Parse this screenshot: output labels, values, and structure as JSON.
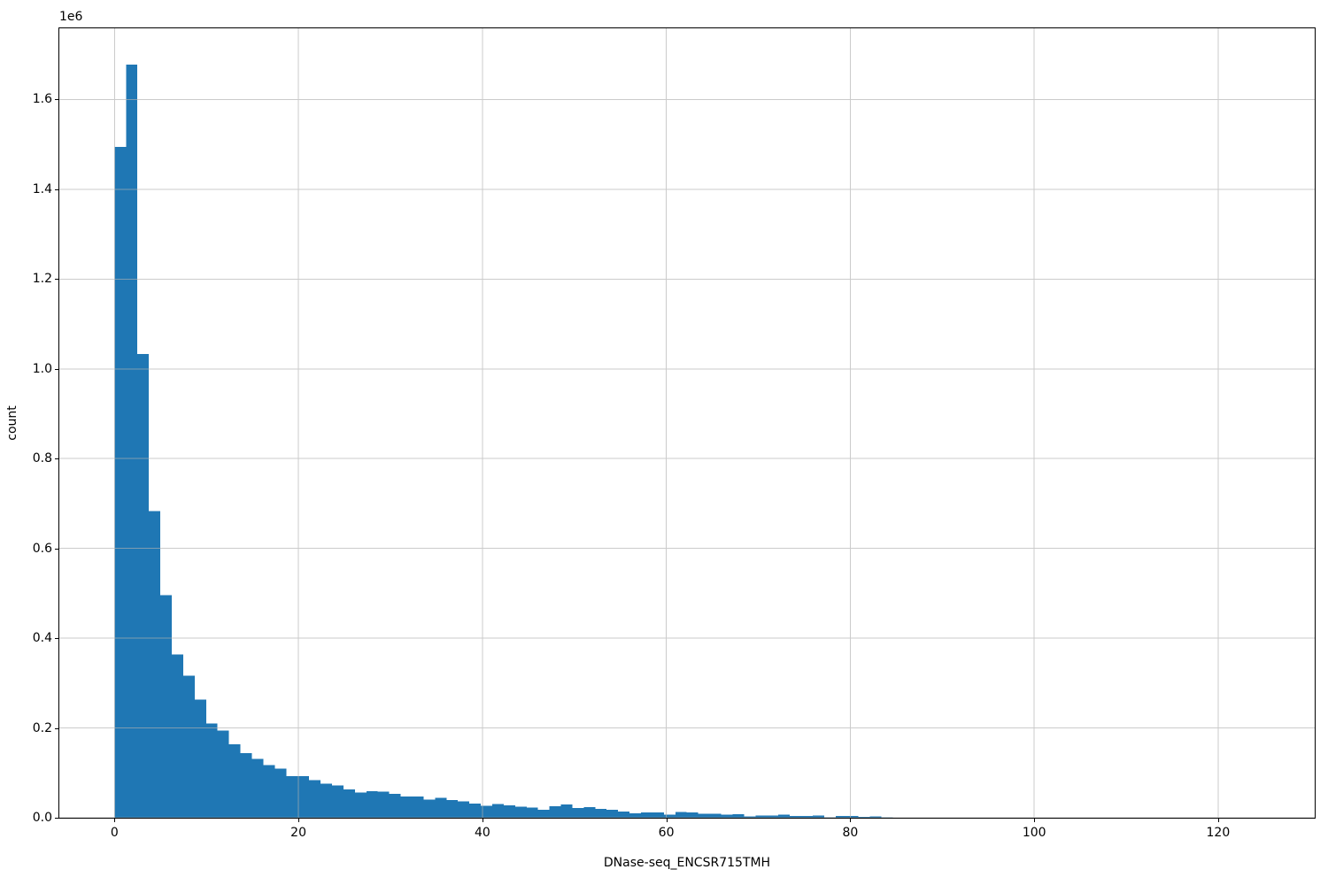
{
  "figure": {
    "background": "#ffffff"
  },
  "chart_data": {
    "type": "histogram",
    "title": "",
    "xlabel": "DNase-seq_ENCSR715TMH",
    "ylabel": "count",
    "y_offset_label": "1e6",
    "bar_color": "#1f77b4",
    "grid_color": "#b0b0b0",
    "spine_color": "#000000",
    "grid": true,
    "legend_position": "none",
    "xlim": [
      -6.0,
      130.5
    ],
    "ylim": [
      0,
      1758500
    ],
    "x_ticks": [
      0,
      20,
      40,
      60,
      80,
      100,
      120
    ],
    "x_tick_labels": [
      "0",
      "20",
      "40",
      "60",
      "80",
      "100",
      "120"
    ],
    "y_ticks": [
      0,
      200000,
      400000,
      600000,
      800000,
      1000000,
      1200000,
      1400000,
      1600000
    ],
    "y_tick_labels": [
      "0.0",
      "0.2",
      "0.4",
      "0.6",
      "0.8",
      "1.0",
      "1.2",
      "1.4",
      "1.6"
    ],
    "bin_start": 0,
    "bin_width": 1.2445,
    "counts": [
      1494000,
      1678000,
      1033000,
      683000,
      496000,
      364000,
      316000,
      263000,
      210000,
      194000,
      164000,
      144000,
      131000,
      117000,
      109000,
      93000,
      93000,
      84000,
      76000,
      72000,
      63000,
      56000,
      59000,
      58000,
      53000,
      47000,
      47000,
      40000,
      44000,
      39000,
      36000,
      32000,
      27000,
      31000,
      28000,
      25000,
      23000,
      18000,
      26000,
      30000,
      22000,
      24000,
      20000,
      18000,
      14000,
      10000,
      12000,
      12000,
      7000,
      13000,
      12000,
      9000,
      9000,
      7000,
      8000,
      3000,
      5000,
      5000,
      7000,
      4000,
      4000,
      5000,
      1000,
      4000,
      4000,
      2000,
      3000,
      1000
    ]
  }
}
